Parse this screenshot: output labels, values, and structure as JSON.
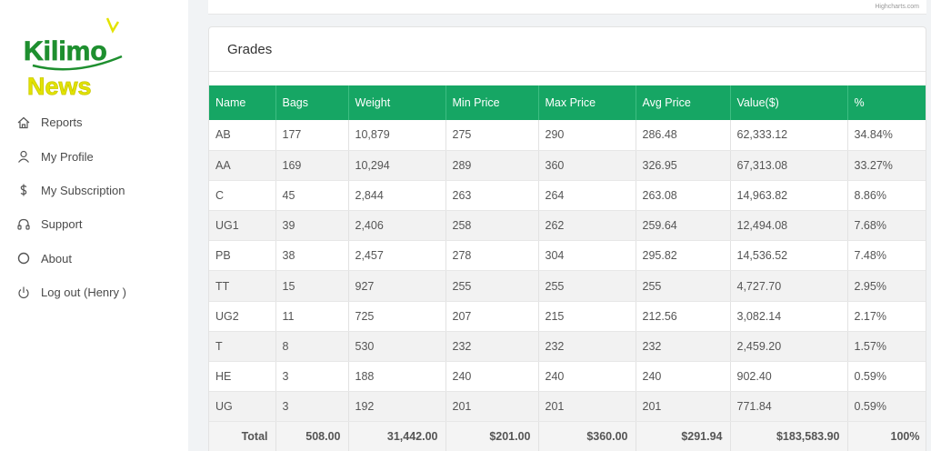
{
  "logo": {
    "word1": "Kilimo",
    "word2": "News"
  },
  "nav": [
    {
      "label": "Reports",
      "icon": "home-icon"
    },
    {
      "label": "My Profile",
      "icon": "user-icon"
    },
    {
      "label": "My Subscription",
      "icon": "dollar-icon"
    },
    {
      "label": "Support",
      "icon": "headset-icon"
    },
    {
      "label": "About",
      "icon": "circle-icon"
    },
    {
      "label": "Log out (Henry )",
      "icon": "power-icon"
    }
  ],
  "chart_credit": "Highcharts.com",
  "grades": {
    "title": "Grades",
    "columns": [
      "Name",
      "Bags",
      "Weight",
      "Min Price",
      "Max Price",
      "Avg Price",
      "Value($)",
      "%"
    ],
    "rows": [
      [
        "AB",
        "177",
        "10,879",
        "275",
        "290",
        "286.48",
        "62,333.12",
        "34.84%"
      ],
      [
        "AA",
        "169",
        "10,294",
        "289",
        "360",
        "326.95",
        "67,313.08",
        "33.27%"
      ],
      [
        "C",
        "45",
        "2,844",
        "263",
        "264",
        "263.08",
        "14,963.82",
        "8.86%"
      ],
      [
        "UG1",
        "39",
        "2,406",
        "258",
        "262",
        "259.64",
        "12,494.08",
        "7.68%"
      ],
      [
        "PB",
        "38",
        "2,457",
        "278",
        "304",
        "295.82",
        "14,536.52",
        "7.48%"
      ],
      [
        "TT",
        "15",
        "927",
        "255",
        "255",
        "255",
        "4,727.70",
        "2.95%"
      ],
      [
        "UG2",
        "11",
        "725",
        "207",
        "215",
        "212.56",
        "3,082.14",
        "2.17%"
      ],
      [
        "T",
        "8",
        "530",
        "232",
        "232",
        "232",
        "2,459.20",
        "1.57%"
      ],
      [
        "HE",
        "3",
        "188",
        "240",
        "240",
        "240",
        "902.40",
        "0.59%"
      ],
      [
        "UG",
        "3",
        "192",
        "201",
        "201",
        "201",
        "771.84",
        "0.59%"
      ]
    ],
    "total": [
      "Total",
      "508.00",
      "31,442.00",
      "$201.00",
      "$360.00",
      "$291.94",
      "$183,583.90",
      "100%"
    ]
  },
  "colors": {
    "accent": "#16a664",
    "logo_green": "#1e8f2f",
    "logo_yellow": "#e3e300"
  }
}
